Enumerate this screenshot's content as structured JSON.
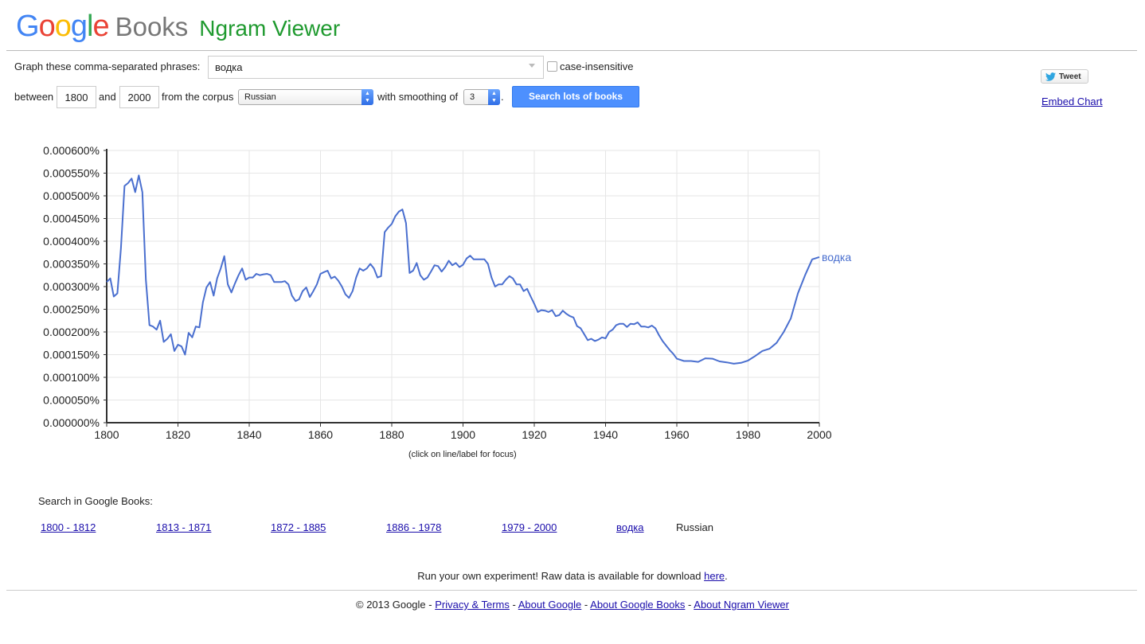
{
  "brand": {
    "google_letters": [
      {
        "ch": "G",
        "color": "#4285F4"
      },
      {
        "ch": "o",
        "color": "#EA4335"
      },
      {
        "ch": "o",
        "color": "#FBBC05"
      },
      {
        "ch": "g",
        "color": "#4285F4"
      },
      {
        "ch": "l",
        "color": "#34A853"
      },
      {
        "ch": "e",
        "color": "#EA4335"
      }
    ],
    "books": "Books",
    "ngram": "Ngram Viewer"
  },
  "form": {
    "phrases_label": "Graph these comma-separated phrases:",
    "phrases_value": "водка",
    "case_label": "case-insensitive",
    "between_label": "between",
    "start_year": "1800",
    "and_label": "and",
    "end_year": "2000",
    "corpus_label": "from the corpus",
    "corpus_value": "Russian",
    "smoothing_label": "with smoothing of",
    "smoothing_value": "3",
    "period": ".",
    "search_button": "Search lots of books"
  },
  "social": {
    "tweet": "Tweet",
    "embed": "Embed Chart"
  },
  "chart_data": {
    "type": "line",
    "title": "",
    "xlabel": "",
    "ylabel": "",
    "xlim": [
      1800,
      2000
    ],
    "ylim": [
      0,
      0.0006
    ],
    "x_ticks": [
      "1800",
      "1820",
      "1840",
      "1860",
      "1880",
      "1900",
      "1920",
      "1940",
      "1960",
      "1980",
      "2000"
    ],
    "y_ticks": [
      "0.000000%",
      "0.000050%",
      "0.000100%",
      "0.000150%",
      "0.000200%",
      "0.000250%",
      "0.000300%",
      "0.000350%",
      "0.000400%",
      "0.000450%",
      "0.000500%",
      "0.000550%",
      "0.000600%"
    ],
    "grid": true,
    "line_color": "#4a6fcf",
    "series": [
      {
        "name": "водка",
        "x": [
          1800,
          1801,
          1802,
          1803,
          1804,
          1805,
          1806,
          1807,
          1808,
          1809,
          1810,
          1811,
          1812,
          1813,
          1814,
          1815,
          1816,
          1817,
          1818,
          1819,
          1820,
          1821,
          1822,
          1823,
          1824,
          1825,
          1826,
          1827,
          1828,
          1829,
          1830,
          1831,
          1832,
          1833,
          1834,
          1835,
          1836,
          1837,
          1838,
          1839,
          1840,
          1841,
          1842,
          1843,
          1844,
          1845,
          1846,
          1847,
          1848,
          1849,
          1850,
          1851,
          1852,
          1853,
          1854,
          1855,
          1856,
          1857,
          1858,
          1859,
          1860,
          1861,
          1862,
          1863,
          1864,
          1865,
          1866,
          1867,
          1868,
          1869,
          1870,
          1871,
          1872,
          1873,
          1874,
          1875,
          1876,
          1877,
          1878,
          1879,
          1880,
          1881,
          1882,
          1883,
          1884,
          1885,
          1886,
          1887,
          1888,
          1889,
          1890,
          1891,
          1892,
          1893,
          1894,
          1895,
          1896,
          1897,
          1898,
          1899,
          1900,
          1901,
          1902,
          1903,
          1904,
          1905,
          1906,
          1907,
          1908,
          1909,
          1910,
          1911,
          1912,
          1913,
          1914,
          1915,
          1916,
          1917,
          1918,
          1919,
          1920,
          1921,
          1922,
          1923,
          1924,
          1925,
          1926,
          1927,
          1928,
          1929,
          1930,
          1931,
          1932,
          1933,
          1934,
          1935,
          1936,
          1937,
          1938,
          1939,
          1940,
          1941,
          1942,
          1943,
          1944,
          1945,
          1946,
          1947,
          1948,
          1949,
          1950,
          1951,
          1952,
          1953,
          1954,
          1955,
          1956,
          1957,
          1958,
          1959,
          1960,
          1962,
          1964,
          1966,
          1968,
          1970,
          1972,
          1974,
          1976,
          1978,
          1980,
          1982,
          1984,
          1986,
          1988,
          1990,
          1992,
          1994,
          1996,
          1998,
          2000
        ],
        "values": [
          0.00031,
          0.000318,
          0.000278,
          0.000285,
          0.000385,
          0.000522,
          0.000528,
          0.000538,
          0.000508,
          0.000545,
          0.000508,
          0.000315,
          0.000215,
          0.000212,
          0.000205,
          0.000225,
          0.000178,
          0.000185,
          0.000195,
          0.000158,
          0.000172,
          0.000168,
          0.00015,
          0.000198,
          0.000188,
          0.000212,
          0.00021,
          0.000265,
          0.000298,
          0.00031,
          0.00028,
          0.000318,
          0.00034,
          0.000367,
          0.000305,
          0.000287,
          0.000307,
          0.000325,
          0.00034,
          0.000315,
          0.00032,
          0.00032,
          0.000328,
          0.000325,
          0.000327,
          0.000328,
          0.000325,
          0.00031,
          0.00031,
          0.00031,
          0.000312,
          0.000305,
          0.00028,
          0.000268,
          0.000272,
          0.00029,
          0.000298,
          0.000277,
          0.00029,
          0.000305,
          0.000328,
          0.000332,
          0.000335,
          0.000318,
          0.000322,
          0.000313,
          0.0003,
          0.000283,
          0.000275,
          0.00029,
          0.00032,
          0.00034,
          0.000335,
          0.00034,
          0.00035,
          0.00034,
          0.00032,
          0.000323,
          0.00042,
          0.00043,
          0.000438,
          0.000455,
          0.000465,
          0.00047,
          0.00044,
          0.00033,
          0.000335,
          0.000352,
          0.000325,
          0.000315,
          0.00032,
          0.000333,
          0.000347,
          0.000345,
          0.000333,
          0.000343,
          0.000357,
          0.000347,
          0.000352,
          0.000343,
          0.000348,
          0.000362,
          0.000368,
          0.00036,
          0.00036,
          0.00036,
          0.00036,
          0.00035,
          0.00032,
          0.0003,
          0.000305,
          0.000305,
          0.000315,
          0.000323,
          0.000318,
          0.000305,
          0.000305,
          0.00029,
          0.000295,
          0.000278,
          0.000262,
          0.000244,
          0.000248,
          0.000247,
          0.000244,
          0.000248,
          0.000235,
          0.000237,
          0.000247,
          0.00024,
          0.000235,
          0.000232,
          0.000213,
          0.000208,
          0.000195,
          0.000182,
          0.000185,
          0.00018,
          0.000183,
          0.000188,
          0.000186,
          0.0002,
          0.000205,
          0.000215,
          0.000218,
          0.000218,
          0.000211,
          0.000218,
          0.000217,
          0.000221,
          0.000212,
          0.000212,
          0.00021,
          0.000214,
          0.000208,
          0.000193,
          0.00018,
          0.00017,
          0.00016,
          0.000152,
          0.000141,
          0.000136,
          0.000136,
          0.000134,
          0.000142,
          0.000141,
          0.000135,
          0.000133,
          0.00013,
          0.000132,
          0.000137,
          0.000147,
          0.000158,
          0.000163,
          0.000176,
          0.0002,
          0.00023,
          0.000285,
          0.000325,
          0.00036,
          0.000365
        ]
      }
    ]
  },
  "chart_note": "(click on line/label for focus)",
  "search_in_books": {
    "title": "Search in Google Books:",
    "links": [
      "1800 - 1812",
      "1813 - 1871",
      "1872 - 1885",
      "1886 - 1978",
      "1979 - 2000"
    ],
    "phrase_link": "водка",
    "corpus": "Russian"
  },
  "footer": {
    "raw_data_text": "Run your own experiment! Raw data is available for download",
    "raw_data_link": "here",
    "raw_data_period": ".",
    "copyright": "© 2013 Google -",
    "links": [
      "Privacy & Terms",
      "About Google",
      "About Google Books",
      "About Ngram Viewer"
    ],
    "separator": " - "
  }
}
